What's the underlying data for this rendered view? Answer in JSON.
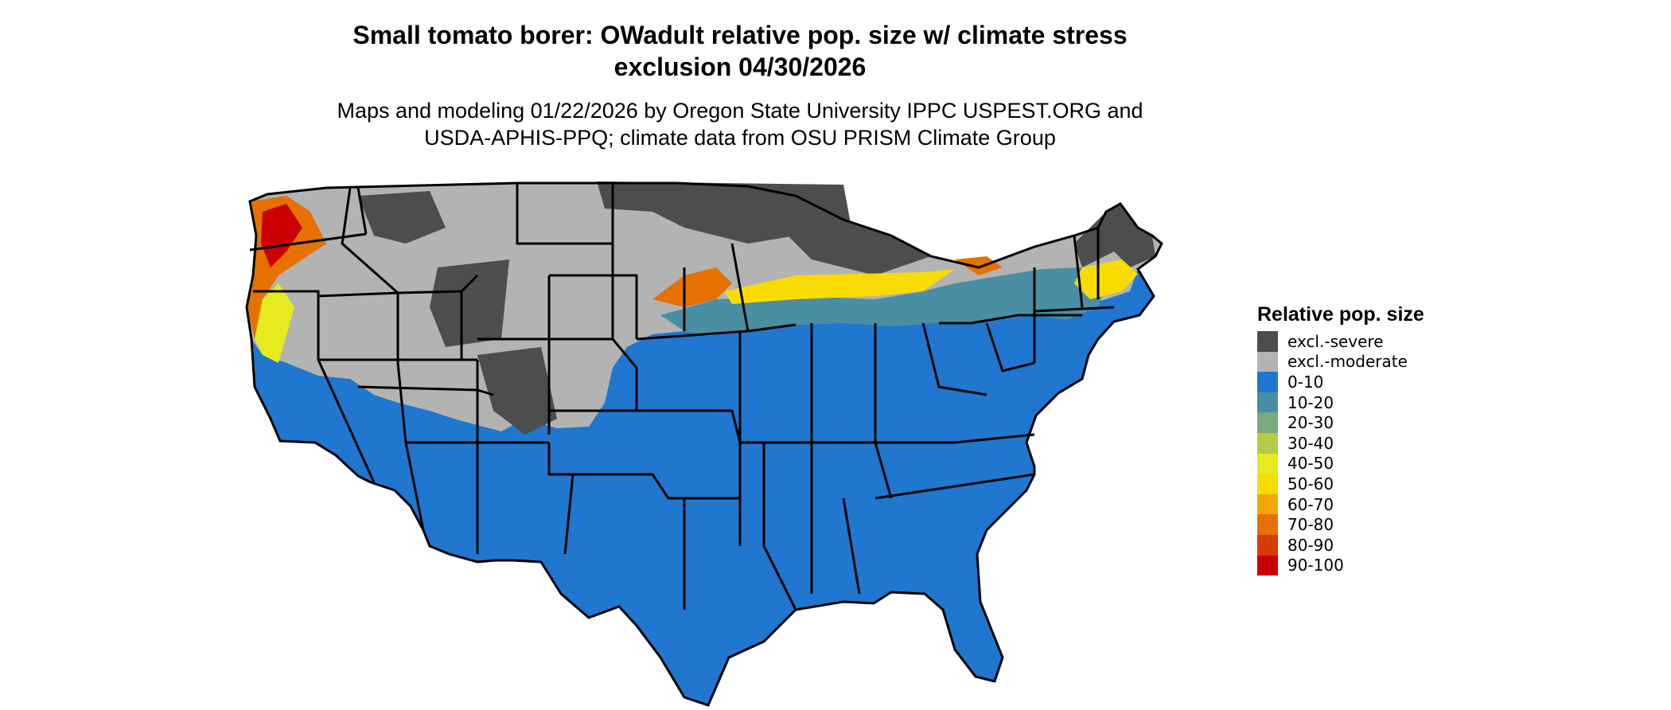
{
  "title_line1": "Small tomato borer: OWadult relative pop. size w/ climate stress",
  "title_line2": "exclusion 04/30/2026",
  "subtitle_line1": "Maps and modeling 01/22/2026 by Oregon State University IPPC USPEST.ORG and",
  "subtitle_line2": "USDA-APHIS-PPQ; climate data from OSU PRISM Climate Group",
  "legend": {
    "title": "Relative pop. size",
    "items": [
      {
        "label": "excl.-severe",
        "color": "#4d4d4d"
      },
      {
        "label": "excl.-moderate",
        "color": "#b3b3b3"
      },
      {
        "label": "0-10",
        "color": "#1f77cf"
      },
      {
        "label": "10-20",
        "color": "#4a8ea3"
      },
      {
        "label": "20-30",
        "color": "#7aa97a"
      },
      {
        "label": "30-40",
        "color": "#b4cc44"
      },
      {
        "label": "40-50",
        "color": "#e6ea1e"
      },
      {
        "label": "50-60",
        "color": "#f8dc00"
      },
      {
        "label": "60-70",
        "color": "#f0a800"
      },
      {
        "label": "70-80",
        "color": "#e67000"
      },
      {
        "label": "80-90",
        "color": "#d83a00"
      },
      {
        "label": "90-100",
        "color": "#cc0000"
      }
    ]
  }
}
